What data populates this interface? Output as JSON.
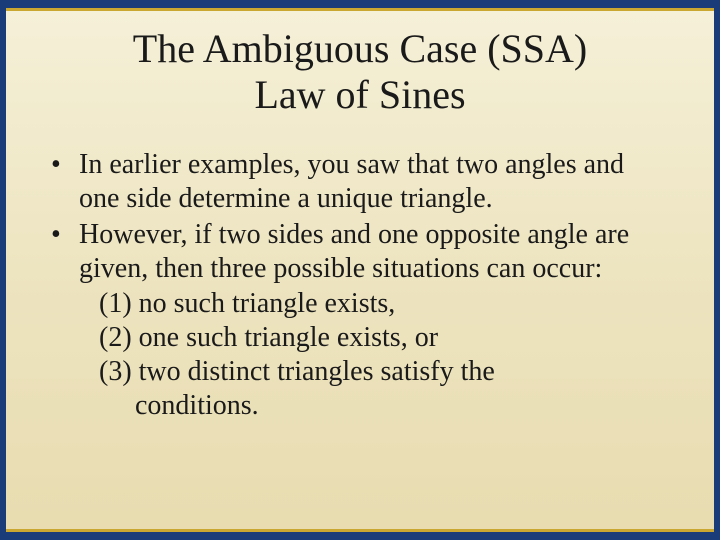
{
  "slide": {
    "background_gradient": [
      "#f5f0d8",
      "#ede4c0",
      "#e8dcb0"
    ],
    "border_color": "#1a3d7a",
    "accent_color": "#c9a730",
    "title": {
      "line1": "The Ambiguous Case (SSA)",
      "line2": "Law of Sines",
      "fontsize": 40,
      "color": "#1a1a1a",
      "align": "center"
    },
    "bullets": [
      {
        "marker": "•",
        "text": "In earlier examples, you saw that two angles and one side determine a unique triangle."
      },
      {
        "marker": "•",
        "text_intro": "However, if two sides and one opposite angle are given, then three possible situations can occur:",
        "sub1": "(1) no such triangle exists,",
        "sub2": "(2) one such triangle exists, or",
        "sub3": "(3) two distinct triangles satisfy the",
        "sub3b": "conditions."
      }
    ],
    "body_fontsize": 28,
    "body_color": "#1a1a1a"
  }
}
